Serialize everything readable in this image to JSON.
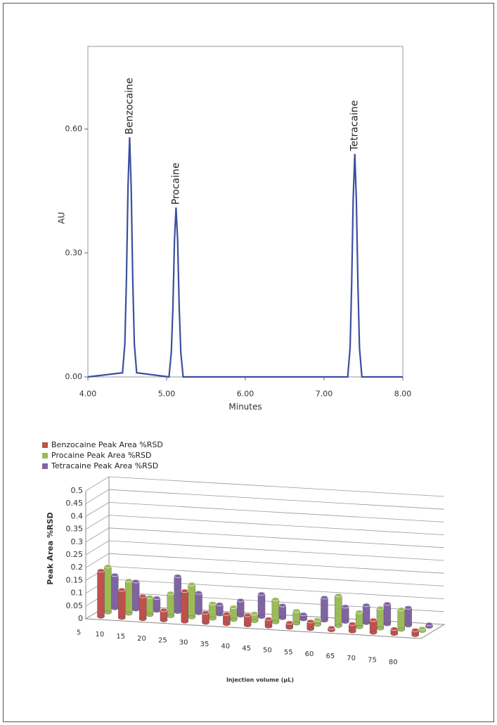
{
  "chart_data": [
    {
      "type": "line",
      "x": [
        4.0,
        4.44,
        4.47,
        4.49,
        4.51,
        4.53,
        4.55,
        4.57,
        4.59,
        4.62,
        5.03,
        5.06,
        5.08,
        5.1,
        5.12,
        5.14,
        5.16,
        5.18,
        5.21,
        7.3,
        7.33,
        7.35,
        7.37,
        7.39,
        7.41,
        7.43,
        7.45,
        7.48,
        8.0
      ],
      "series": [
        {
          "color": "#3b4fa0",
          "values": [
            0,
            0.01,
            0.08,
            0.24,
            0.46,
            0.58,
            0.46,
            0.24,
            0.08,
            0.01,
            0,
            0.06,
            0.17,
            0.33,
            0.41,
            0.33,
            0.17,
            0.06,
            0,
            0,
            0.07,
            0.22,
            0.43,
            0.54,
            0.43,
            0.22,
            0.07,
            0,
            0
          ]
        }
      ],
      "xlim": [
        4,
        8
      ],
      "ylim": [
        0,
        0.8
      ],
      "xticks": [
        {
          "value": 4,
          "label": "4.00"
        },
        {
          "value": 5,
          "label": "5.00"
        },
        {
          "value": 6,
          "label": "6.00"
        },
        {
          "value": 7,
          "label": "7.00"
        },
        {
          "value": 8,
          "label": "8.00"
        }
      ],
      "yticks": [
        {
          "value": 0,
          "label": "0.00"
        },
        {
          "value": 0.3,
          "label": "0.30"
        },
        {
          "value": 0.6,
          "label": "0.60"
        }
      ],
      "xlabel": "Minutes",
      "ylabel": "AU",
      "annotations": [
        "Benzocaine",
        "Procaine",
        "Tetracaine"
      ]
    },
    {
      "type": "bar",
      "categories": [
        "5",
        "10",
        "15",
        "20",
        "25",
        "30",
        "35",
        "40",
        "45",
        "50",
        "55",
        "60",
        "65",
        "70",
        "75",
        "80"
      ],
      "series": [
        {
          "name": "Benzocaine Peak Area %RSD",
          "color": "#c0504d",
          "values": [
            0.18,
            0.11,
            0.09,
            0.04,
            0.12,
            0.04,
            0.04,
            0.04,
            0.03,
            0.02,
            0.03,
            0.01,
            0.03,
            0.05,
            0.02,
            0.02
          ]
        },
        {
          "name": "Procaine Peak Area %RSD",
          "color": "#9bbb59",
          "values": [
            0.18,
            0.13,
            0.07,
            0.09,
            0.13,
            0.06,
            0.05,
            0.03,
            0.09,
            0.05,
            0.02,
            0.12,
            0.06,
            0.08,
            0.08,
            0.01
          ]
        },
        {
          "name": "Tetracaine Peak Area %RSD",
          "color": "#8064a2",
          "values": [
            0.13,
            0.11,
            0.05,
            0.14,
            0.08,
            0.04,
            0.06,
            0.09,
            0.05,
            0.02,
            0.09,
            0.06,
            0.07,
            0.08,
            0.07,
            0.01
          ]
        }
      ],
      "ylim": [
        0,
        0.5
      ],
      "yticks": [
        0,
        0.05,
        0.1,
        0.15,
        0.2,
        0.25,
        0.3,
        0.35,
        0.4,
        0.45,
        0.5
      ],
      "xlabel": "Injection volume (µL)",
      "ylabel": "Peak Area %RSD",
      "legend": "top-left",
      "grid": true
    }
  ]
}
